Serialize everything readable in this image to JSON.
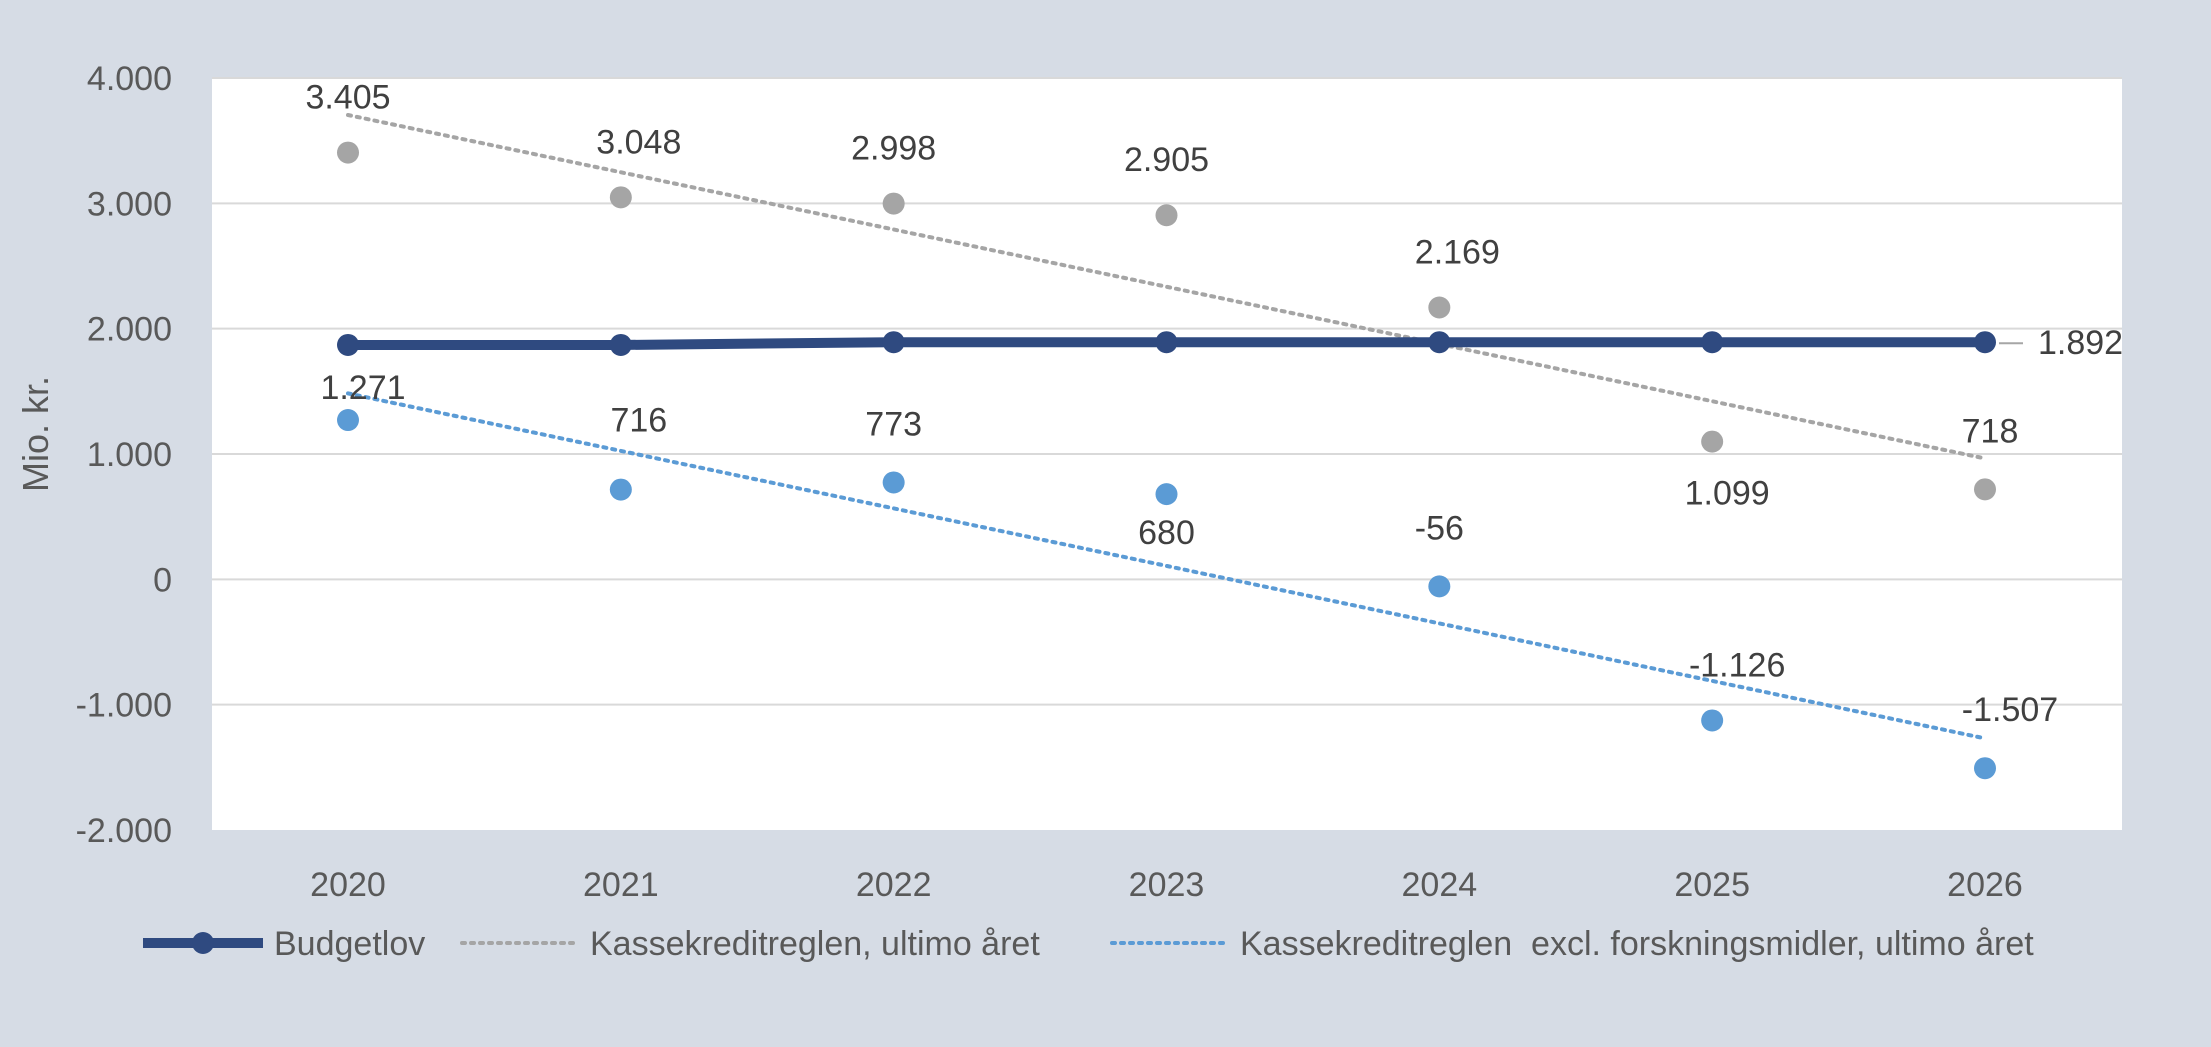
{
  "chart_data": {
    "type": "line",
    "title": "",
    "xlabel": "",
    "ylabel": "Mio. kr.",
    "categories": [
      "2020",
      "2021",
      "2022",
      "2023",
      "2024",
      "2025",
      "2026"
    ],
    "ylim": [
      -2000,
      4000
    ],
    "y_ticks": [
      -2000,
      -1000,
      0,
      1000,
      2000,
      3000,
      4000
    ],
    "y_tick_labels": [
      "-2.000",
      "-1.000",
      "0",
      "1.000",
      "2.000",
      "3.000",
      "4.000"
    ],
    "grid": true,
    "legend_position": "bottom",
    "series": [
      {
        "name": "Budgetlov",
        "style": "solid line with markers",
        "color": "#2f4a80",
        "values": [
          1870,
          1870,
          1892,
          1892,
          1892,
          1892,
          1892
        ],
        "data_labels": [
          "",
          "",
          "",
          "",
          "",
          "",
          "1.892"
        ]
      },
      {
        "name": "Kassekreditreglen, ultimo året",
        "style": "markers with dotted linear trendline",
        "color": "#a5a5a5",
        "values": [
          3405,
          3048,
          2998,
          2905,
          2169,
          1099,
          718
        ],
        "data_labels": [
          "3.405",
          "3.048",
          "2.998",
          "2.905",
          "2.169",
          "1.099",
          "718"
        ]
      },
      {
        "name": "Kassekreditreglen  excl. forskningsmidler, ultimo året",
        "style": "markers with dotted linear trendline",
        "color": "#5b9bd5",
        "values": [
          1271,
          716,
          773,
          680,
          -56,
          -1126,
          -1507
        ],
        "data_labels": [
          "1.271",
          "716",
          "773",
          "680",
          "-56",
          "-1.126",
          "-1.507"
        ]
      }
    ]
  }
}
